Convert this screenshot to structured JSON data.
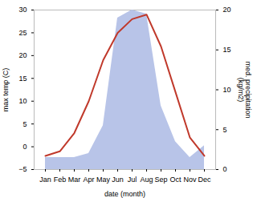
{
  "chart_data": {
    "type": "line",
    "categories": [
      "Jan",
      "Feb",
      "Mar",
      "Apr",
      "May",
      "Jun",
      "Jul",
      "Aug",
      "Sep",
      "Oct",
      "Nov",
      "Dec"
    ],
    "series": [
      {
        "type": "area",
        "axis": "y2",
        "color": "#b8c4e8",
        "values": [
          1.5,
          1.5,
          1.5,
          2.0,
          5.5,
          19.0,
          20.0,
          19.5,
          8.0,
          3.5,
          1.5,
          3.0
        ]
      },
      {
        "type": "line",
        "color": "#c0392b",
        "values": [
          -2,
          -1,
          3,
          10,
          19,
          25,
          28,
          29,
          22,
          12,
          2,
          -2
        ]
      }
    ],
    "xlabel": "date (month)",
    "ylabel": "max temp (C)",
    "y2label": "med. precipitation\n(kg/m2)",
    "ylim": [
      -5,
      30
    ],
    "yticks": [
      -5,
      0,
      5,
      10,
      15,
      20,
      25,
      30
    ],
    "y2lim": [
      0,
      20
    ],
    "y2ticks": [
      0,
      5,
      10,
      15,
      20
    ],
    "grid": false
  }
}
